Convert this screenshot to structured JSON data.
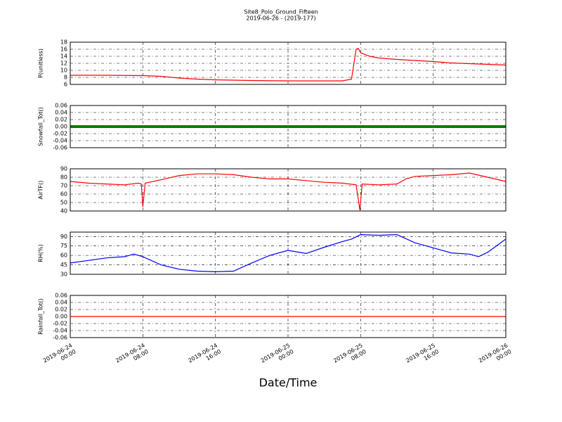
{
  "chart_data": [
    {
      "type": "line",
      "title": "Site8_Polo_Ground_Fifteen",
      "subtitle": "2019-06-26 - (2019-177)",
      "ylabel": "P(unitless)",
      "color": "#ff0000",
      "x": [
        "2019-06-24 00:00",
        "2019-06-24 04:00",
        "2019-06-24 08:00",
        "2019-06-24 10:00",
        "2019-06-24 12:00",
        "2019-06-24 14:00",
        "2019-06-24 16:00",
        "2019-06-24 20:00",
        "2019-06-25 00:00",
        "2019-06-25 04:00",
        "2019-06-25 06:00",
        "2019-06-25 07:00",
        "2019-06-25 07:30",
        "2019-06-25 07:45",
        "2019-06-25 08:00",
        "2019-06-25 09:00",
        "2019-06-25 10:00",
        "2019-06-25 12:00",
        "2019-06-25 16:00",
        "2019-06-25 18:00",
        "2019-06-25 20:00",
        "2019-06-26 00:00"
      ],
      "values": [
        8.6,
        8.6,
        8.5,
        8.3,
        7.8,
        7.5,
        7.3,
        7.1,
        7.0,
        7.0,
        7.0,
        7.5,
        16.0,
        16.2,
        15.0,
        14.0,
        13.5,
        13.1,
        12.5,
        12.1,
        11.9,
        11.5
      ],
      "ylim": [
        6,
        18
      ],
      "yticks": [
        6,
        8,
        10,
        12,
        14,
        16,
        18
      ]
    },
    {
      "type": "line",
      "ylabel": "Snowfall_Tot()",
      "color": "#008000",
      "x": [
        "2019-06-24 00:00",
        "2019-06-24 08:00",
        "2019-06-24 16:00",
        "2019-06-25 00:00",
        "2019-06-25 08:00",
        "2019-06-25 16:00",
        "2019-06-26 00:00"
      ],
      "values": [
        0,
        0,
        0,
        0,
        0,
        0,
        0
      ],
      "ylim": [
        -0.06,
        0.06
      ],
      "yticks": [
        -0.06,
        -0.04,
        -0.02,
        {
          "value": 0,
          "label": "0.00"
        },
        0.02,
        0.04,
        0.06
      ]
    },
    {
      "type": "line",
      "ylabel": "AirTF()",
      "color": "#ff0000",
      "x": [
        "2019-06-24 00:00",
        "2019-06-24 02:00",
        "2019-06-24 04:00",
        "2019-06-24 06:00",
        "2019-06-24 07:30",
        "2019-06-24 07:50",
        "2019-06-24 08:00",
        "2019-06-24 08:15",
        "2019-06-24 10:00",
        "2019-06-24 12:00",
        "2019-06-24 14:00",
        "2019-06-24 16:00",
        "2019-06-24 18:00",
        "2019-06-24 20:00",
        "2019-06-24 22:00",
        "2019-06-25 00:00",
        "2019-06-25 02:00",
        "2019-06-25 04:00",
        "2019-06-25 06:00",
        "2019-06-25 07:30",
        "2019-06-25 07:55",
        "2019-06-25 08:10",
        "2019-06-25 10:00",
        "2019-06-25 12:00",
        "2019-06-25 13:00",
        "2019-06-25 14:00",
        "2019-06-25 16:00",
        "2019-06-25 18:00",
        "2019-06-25 20:00",
        "2019-06-25 22:00",
        "2019-06-26 00:00"
      ],
      "values": [
        75,
        73,
        72,
        71,
        73,
        72,
        45,
        73,
        77,
        82,
        84,
        84,
        83,
        80,
        78,
        78,
        76,
        74,
        73,
        71,
        41,
        72,
        71,
        72,
        78,
        81,
        82,
        83,
        85,
        80,
        75
      ],
      "ylim": [
        40,
        90
      ],
      "yticks": [
        40,
        50,
        60,
        70,
        80,
        90
      ]
    },
    {
      "type": "line",
      "ylabel": "RH(%)",
      "color": "#0000ff",
      "x": [
        "2019-06-24 00:00",
        "2019-06-24 02:00",
        "2019-06-24 04:00",
        "2019-06-24 06:00",
        "2019-06-24 07:00",
        "2019-06-24 08:00",
        "2019-06-24 10:00",
        "2019-06-24 12:00",
        "2019-06-24 14:00",
        "2019-06-24 16:00",
        "2019-06-24 18:00",
        "2019-06-24 20:00",
        "2019-06-24 22:00",
        "2019-06-25 00:00",
        "2019-06-25 02:00",
        "2019-06-25 04:00",
        "2019-06-25 06:00",
        "2019-06-25 07:00",
        "2019-06-25 08:00",
        "2019-06-25 10:00",
        "2019-06-25 12:00",
        "2019-06-25 14:00",
        "2019-06-25 16:00",
        "2019-06-25 18:00",
        "2019-06-25 20:00",
        "2019-06-25 21:00",
        "2019-06-25 22:00",
        "2019-06-26 00:00"
      ],
      "values": [
        48,
        52,
        56,
        58,
        62,
        58,
        45,
        38,
        35,
        34,
        35,
        48,
        60,
        68,
        63,
        73,
        82,
        86,
        93,
        92,
        93,
        80,
        72,
        64,
        62,
        58,
        65,
        86
      ],
      "ylim": [
        30,
        97
      ],
      "yticks": [
        30,
        45,
        60,
        75,
        90
      ]
    },
    {
      "type": "line",
      "ylabel": "Rainfall_Tot()",
      "xlabel": "Date/Time",
      "color": "#ff0000",
      "x": [
        "2019-06-24 00:00",
        "2019-06-24 08:00",
        "2019-06-24 16:00",
        "2019-06-25 00:00",
        "2019-06-25 08:00",
        "2019-06-25 16:00",
        "2019-06-26 00:00"
      ],
      "values": [
        0,
        0,
        0,
        0,
        0,
        0,
        0
      ],
      "ylim": [
        -0.06,
        0.06
      ],
      "yticks": [
        -0.06,
        -0.04,
        -0.02,
        {
          "value": 0,
          "label": "0.00"
        },
        0.02,
        0.04,
        0.06
      ],
      "xlim": [
        "2019-06-24 00:00",
        "2019-06-26 00:00"
      ],
      "xticks": [
        "2019-06-24 00:00",
        "2019-06-24 08:00",
        "2019-06-24 16:00",
        "2019-06-25 00:00",
        "2019-06-25 08:00",
        "2019-06-25 16:00",
        "2019-06-26 00:00"
      ]
    }
  ]
}
